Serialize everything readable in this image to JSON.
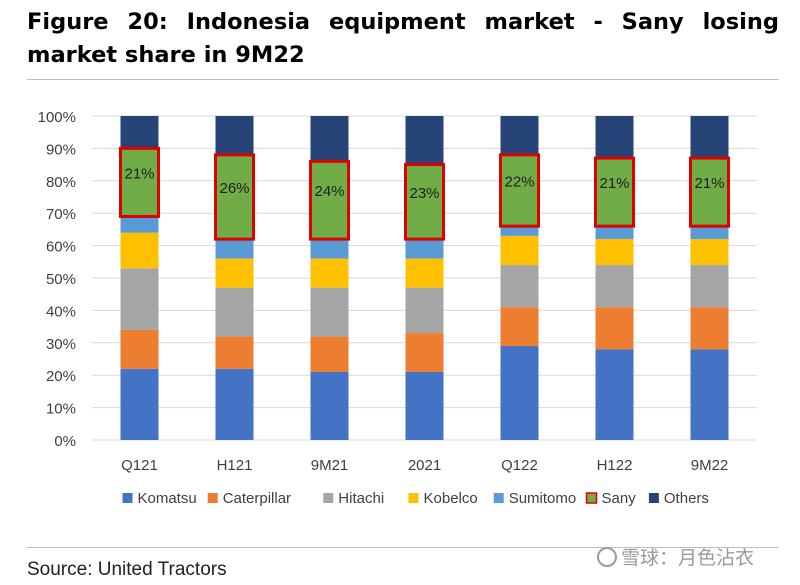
{
  "title": "Figure 20: Indonesia equipment market - Sany losing market share in 9M22",
  "source": "Source: United Tractors",
  "watermark": "雪球：月色沾衣",
  "chart_data": {
    "type": "bar",
    "stacked": true,
    "categories": [
      "Q121",
      "H121",
      "9M21",
      "2021",
      "Q122",
      "H122",
      "9M22"
    ],
    "ylim": [
      0,
      100
    ],
    "yticks": [
      "0%",
      "10%",
      "20%",
      "30%",
      "40%",
      "50%",
      "60%",
      "70%",
      "80%",
      "90%",
      "100%"
    ],
    "grid": true,
    "legend_position": "bottom",
    "series": [
      {
        "name": "Komatsu",
        "color": "#4472C4",
        "values": [
          22,
          22,
          21,
          21,
          29,
          28,
          28
        ]
      },
      {
        "name": "Caterpillar",
        "color": "#ED7D31",
        "values": [
          12,
          10,
          11,
          12,
          12,
          13,
          13
        ]
      },
      {
        "name": "Hitachi",
        "color": "#A5A5A5",
        "values": [
          19,
          15,
          15,
          14,
          13,
          13,
          13
        ]
      },
      {
        "name": "Kobelco",
        "color": "#FFC000",
        "values": [
          11,
          9,
          9,
          9,
          9,
          8,
          8
        ]
      },
      {
        "name": "Sumitomo",
        "color": "#5B9BD5",
        "values": [
          5,
          6,
          6,
          6,
          3,
          4,
          4
        ]
      },
      {
        "name": "Sany",
        "color": "#70AD47",
        "outline": "#E00000",
        "values": [
          21,
          26,
          24,
          23,
          22,
          21,
          21
        ]
      },
      {
        "name": "Others",
        "color": "#264478",
        "values": [
          10,
          12,
          14,
          15,
          12,
          13,
          13
        ]
      }
    ],
    "data_labels": {
      "series": "Sany",
      "labels": [
        "21%",
        "26%",
        "24%",
        "23%",
        "22%",
        "21%",
        "21%"
      ]
    }
  }
}
